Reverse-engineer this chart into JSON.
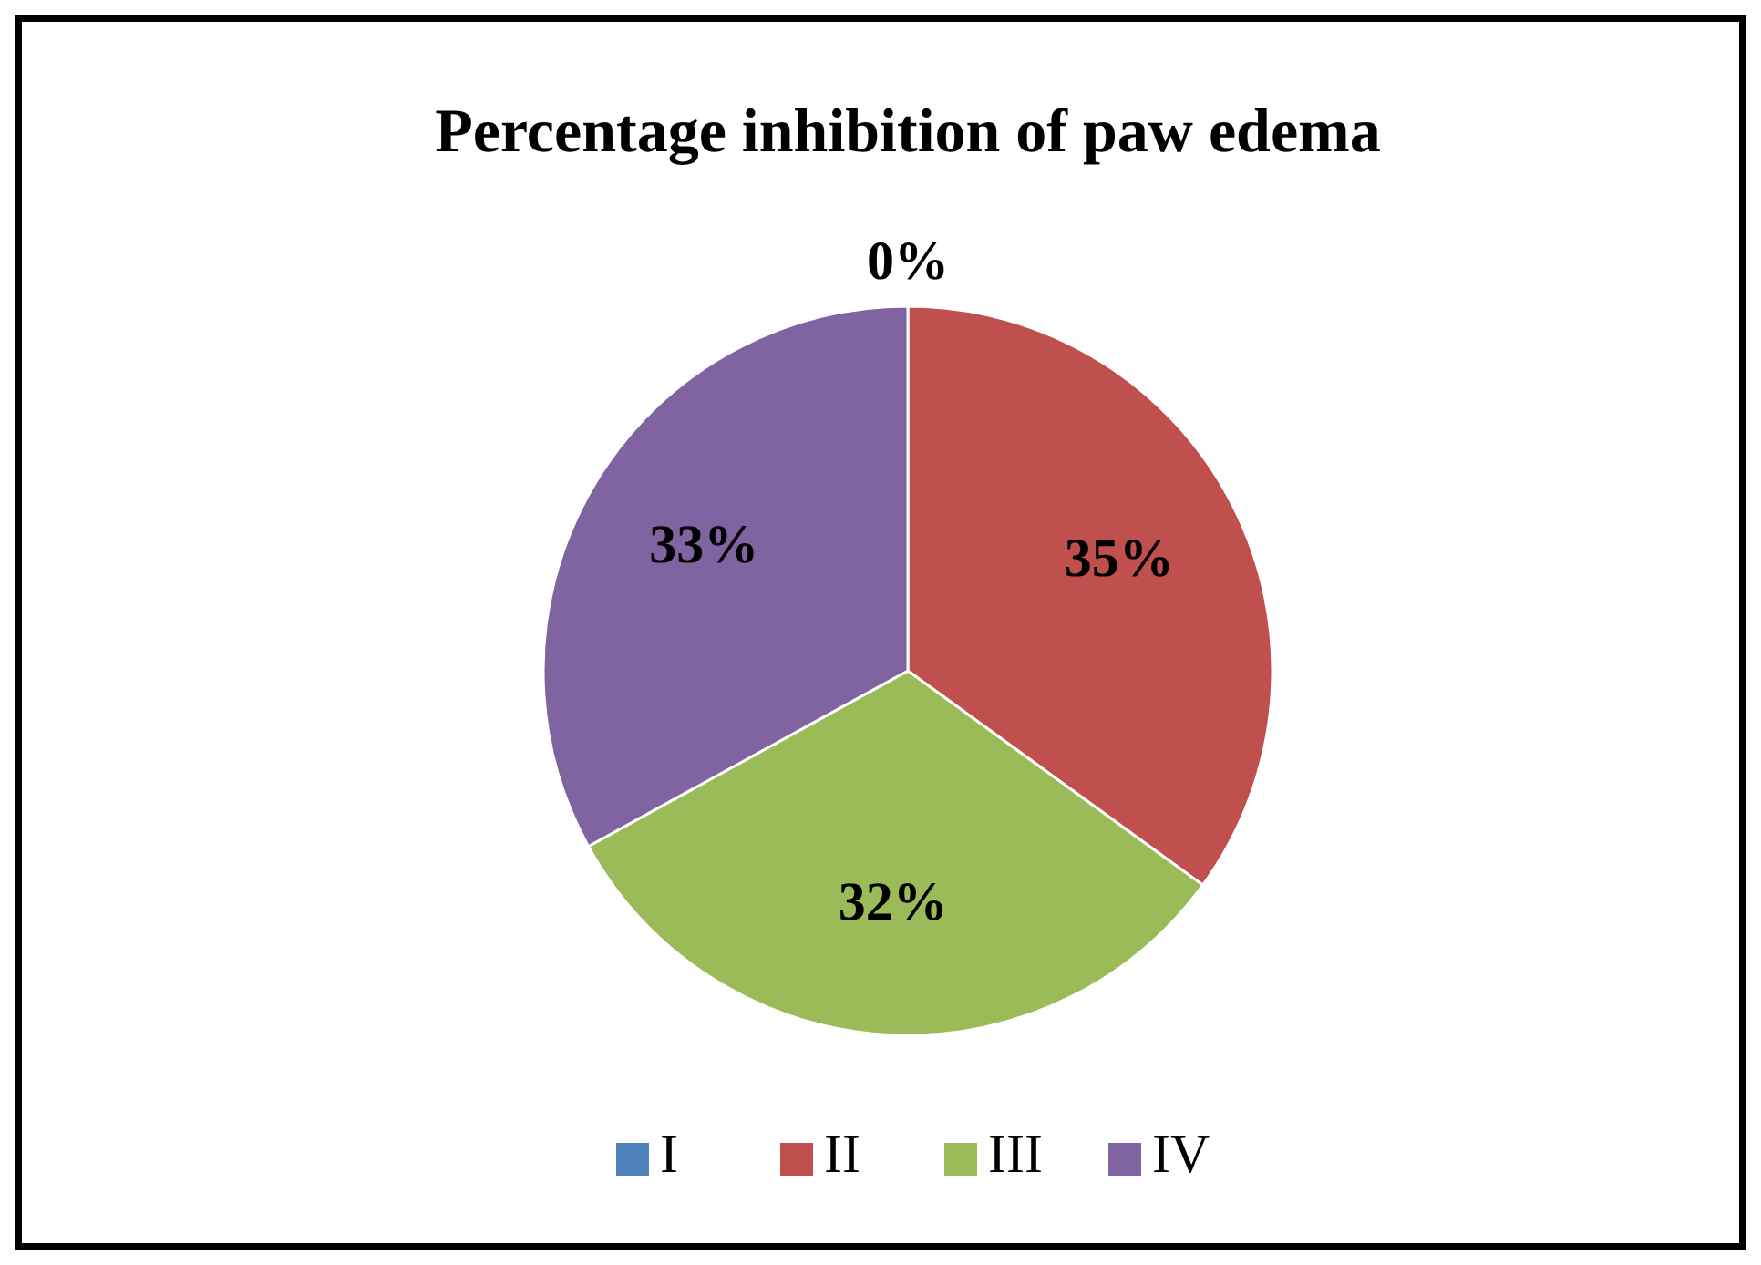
{
  "chart_data": {
    "type": "pie",
    "title": "Percentage inhibition of paw edema",
    "categories": [
      "I",
      "II",
      "III",
      "IV"
    ],
    "values": [
      0,
      35,
      32,
      33
    ],
    "colors": [
      "#4f81bd",
      "#c0504d",
      "#9bbb59",
      "#8064a2"
    ],
    "value_labels": [
      "0%",
      "35%",
      "32%",
      "33%"
    ],
    "legend": "bottom"
  }
}
